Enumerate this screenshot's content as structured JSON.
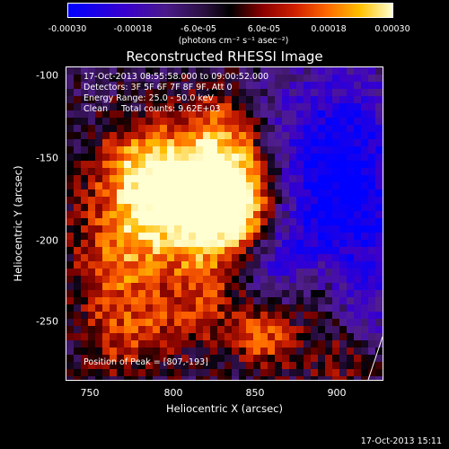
{
  "colorbar": {
    "ticks": [
      "-0.00030",
      "-0.00018",
      "-6.0e-05",
      "6.0e-05",
      "0.00018",
      "0.00030"
    ],
    "units": "(photons cm⁻² s⁻¹ asec⁻²)"
  },
  "title": "Reconstructed RHESSI Image",
  "info": {
    "time": "17-Oct-2013 08:55:58.000 to 09:00:52.000",
    "detectors": "Detectors: 3F 5F 6F 7F 8F 9F, Att 0",
    "energy": "Energy Range: 25.0 - 50.0 keV",
    "clean": "Clean     Total counts: 9.62E+03"
  },
  "peak": "Position of Peak = [807,-193]",
  "axes": {
    "ylabel": "Heliocentric Y (arcsec)",
    "xlabel": "Heliocentric X (arcsec)",
    "yticks": [
      "-100",
      "-150",
      "-200",
      "-250"
    ],
    "xticks": [
      "750",
      "800",
      "850",
      "900"
    ]
  },
  "timestamp": "17-Oct-2013 15:11"
}
